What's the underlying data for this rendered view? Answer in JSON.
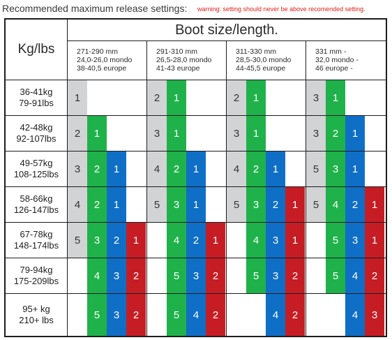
{
  "title": "Recommended maximum release settings:",
  "warning": "warning: setting should never be above recomended setting.",
  "header": {
    "kg_label": "Kg/lbs",
    "boot_label": "Boot size/length."
  },
  "boot_sizes": [
    {
      "lines": [
        "271-290 mm",
        "24,0-26,0 mondo",
        "38-40,5 europe"
      ]
    },
    {
      "lines": [
        "291-310 mm",
        "26,5-28,0 mondo",
        "41-43 europe"
      ]
    },
    {
      "lines": [
        "311-330 mm",
        "28,5-30,0 mondo",
        "44-45,5 europe"
      ]
    },
    {
      "lines": [
        "331 mm -",
        "32,0 mondo -",
        "46 europe -"
      ]
    }
  ],
  "colors": {
    "gray": "#d2d3d5",
    "green": "#1fb24a",
    "blue": "#0f6fc6",
    "red": "#c61d24",
    "gray_text": "#333333",
    "color_text": "#ffffff"
  },
  "rows": [
    {
      "kg": "36-41kg",
      "lbs": "79-91lbs",
      "cells": [
        [
          {
            "c": "gray",
            "v": "1"
          }
        ],
        [
          {
            "c": "gray",
            "v": "2"
          },
          {
            "c": "green",
            "v": "1"
          }
        ],
        [
          {
            "c": "gray",
            "v": "2"
          },
          {
            "c": "green",
            "v": "1"
          }
        ],
        [
          {
            "c": "gray",
            "v": "3"
          },
          {
            "c": "green",
            "v": "1"
          }
        ]
      ]
    },
    {
      "kg": "42-48kg",
      "lbs": "92-107lbs",
      "cells": [
        [
          {
            "c": "gray",
            "v": "2"
          },
          {
            "c": "green",
            "v": "1"
          }
        ],
        [
          {
            "c": "gray",
            "v": "3"
          },
          {
            "c": "green",
            "v": "1"
          }
        ],
        [
          {
            "c": "gray",
            "v": "3"
          },
          {
            "c": "green",
            "v": "1"
          }
        ],
        [
          {
            "c": "gray",
            "v": "3"
          },
          {
            "c": "green",
            "v": "2"
          },
          {
            "c": "blue",
            "v": "1"
          }
        ]
      ]
    },
    {
      "kg": "49-57kg",
      "lbs": "108-125lbs",
      "cells": [
        [
          {
            "c": "gray",
            "v": "3"
          },
          {
            "c": "green",
            "v": "2"
          },
          {
            "c": "blue",
            "v": "1"
          }
        ],
        [
          {
            "c": "gray",
            "v": "4"
          },
          {
            "c": "green",
            "v": "2"
          },
          {
            "c": "blue",
            "v": "1"
          }
        ],
        [
          {
            "c": "gray",
            "v": "4"
          },
          {
            "c": "green",
            "v": "2"
          },
          {
            "c": "blue",
            "v": "1"
          }
        ],
        [
          {
            "c": "gray",
            "v": "5"
          },
          {
            "c": "green",
            "v": "3"
          },
          {
            "c": "blue",
            "v": "1"
          }
        ]
      ]
    },
    {
      "kg": "58-66kg",
      "lbs": "126-147lbs",
      "cells": [
        [
          {
            "c": "gray",
            "v": "4"
          },
          {
            "c": "green",
            "v": "2"
          },
          {
            "c": "blue",
            "v": "1"
          }
        ],
        [
          {
            "c": "gray",
            "v": "5"
          },
          {
            "c": "green",
            "v": "3"
          },
          {
            "c": "blue",
            "v": "1"
          }
        ],
        [
          {
            "c": "gray",
            "v": "5"
          },
          {
            "c": "green",
            "v": "3"
          },
          {
            "c": "blue",
            "v": "2"
          },
          {
            "c": "red",
            "v": "1"
          }
        ],
        [
          {
            "c": "gray",
            "v": "5"
          },
          {
            "c": "green",
            "v": "4"
          },
          {
            "c": "blue",
            "v": "2"
          },
          {
            "c": "red",
            "v": "1"
          }
        ]
      ]
    },
    {
      "kg": "67-78kg",
      "lbs": "148-174lbs",
      "cells": [
        [
          {
            "c": "gray",
            "v": "5"
          },
          {
            "c": "green",
            "v": "3"
          },
          {
            "c": "blue",
            "v": "2"
          },
          {
            "c": "red",
            "v": "1"
          }
        ],
        [
          {
            "c": "none",
            "v": ""
          },
          {
            "c": "green",
            "v": "4"
          },
          {
            "c": "blue",
            "v": "2"
          },
          {
            "c": "red",
            "v": "1"
          }
        ],
        [
          {
            "c": "none",
            "v": ""
          },
          {
            "c": "green",
            "v": "4"
          },
          {
            "c": "blue",
            "v": "3"
          },
          {
            "c": "red",
            "v": "1"
          }
        ],
        [
          {
            "c": "none",
            "v": ""
          },
          {
            "c": "green",
            "v": "5"
          },
          {
            "c": "blue",
            "v": "3"
          },
          {
            "c": "red",
            "v": "1"
          }
        ]
      ]
    },
    {
      "kg": "79-94kg",
      "lbs": "175-209lbs",
      "cells": [
        [
          {
            "c": "none",
            "v": ""
          },
          {
            "c": "green",
            "v": "4"
          },
          {
            "c": "blue",
            "v": "3"
          },
          {
            "c": "red",
            "v": "2"
          }
        ],
        [
          {
            "c": "none",
            "v": ""
          },
          {
            "c": "green",
            "v": "5"
          },
          {
            "c": "blue",
            "v": "3"
          },
          {
            "c": "red",
            "v": "2"
          }
        ],
        [
          {
            "c": "none",
            "v": ""
          },
          {
            "c": "green",
            "v": "5"
          },
          {
            "c": "blue",
            "v": "3"
          },
          {
            "c": "red",
            "v": "2"
          }
        ],
        [
          {
            "c": "none",
            "v": ""
          },
          {
            "c": "green",
            "v": "5"
          },
          {
            "c": "blue",
            "v": "4"
          },
          {
            "c": "red",
            "v": "2"
          }
        ]
      ]
    },
    {
      "kg": "95+ kg",
      "lbs": "210+ lbs",
      "cells": [
        [
          {
            "c": "none",
            "v": ""
          },
          {
            "c": "green",
            "v": "5"
          },
          {
            "c": "blue",
            "v": "3"
          },
          {
            "c": "red",
            "v": "2"
          }
        ],
        [
          {
            "c": "none",
            "v": ""
          },
          {
            "c": "green",
            "v": "5"
          },
          {
            "c": "blue",
            "v": "4"
          },
          {
            "c": "red",
            "v": "2"
          }
        ],
        [
          {
            "c": "none",
            "v": ""
          },
          {
            "c": "none",
            "v": ""
          },
          {
            "c": "blue",
            "v": "4"
          },
          {
            "c": "red",
            "v": "2"
          }
        ],
        [
          {
            "c": "none",
            "v": ""
          },
          {
            "c": "none",
            "v": ""
          },
          {
            "c": "blue",
            "v": "4"
          },
          {
            "c": "red",
            "v": "3"
          }
        ]
      ]
    }
  ]
}
